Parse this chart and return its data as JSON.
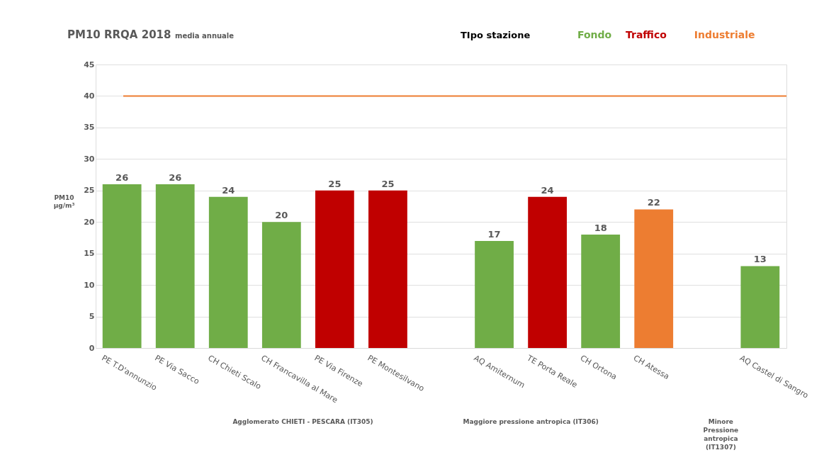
{
  "chart_data": {
    "type": "bar",
    "title": "PM10 RRQA  2018",
    "subtitle": "media annuale",
    "ylabel": "PM10 µg/m³",
    "legend_title": "TIpo stazione",
    "legend": "top right",
    "categories": [
      "PE T.D'annunzio",
      "PE Via Sacco",
      "CH Chieti Scalo",
      "CH Francavilla al Mare",
      "PE  Via Firenze",
      "PE Montesilvano",
      null,
      "AQ Amiternum",
      "TE Porta Reale",
      "CH Ortona",
      "CH Atessa",
      null,
      "AQ Castel di Sangro"
    ],
    "series": [
      {
        "name": "Fondo",
        "color": "#70ad47",
        "values": [
          26,
          26,
          24,
          20,
          null,
          null,
          null,
          17,
          null,
          18,
          null,
          null,
          13
        ]
      },
      {
        "name": "Traffico",
        "color": "#c00000",
        "values": [
          null,
          null,
          null,
          null,
          25,
          25,
          null,
          null,
          24,
          null,
          null,
          null,
          null
        ]
      },
      {
        "name": "Industriale",
        "color": "#ed7d31",
        "values": [
          null,
          null,
          null,
          null,
          null,
          null,
          null,
          null,
          null,
          null,
          22,
          null,
          null
        ]
      }
    ],
    "ylim": [
      0,
      45
    ],
    "yticks": [
      0,
      5,
      10,
      15,
      20,
      25,
      30,
      35,
      40,
      45
    ],
    "grid": "y",
    "data_labels": true,
    "ref_lines": [
      {
        "axis": "y",
        "value": 40,
        "color": "#ed7d31"
      }
    ],
    "annotations": [
      "Agglomerato CHIETI - PESCARA (IT305)",
      "Maggiore pressione antropica (IT306)",
      "Minore Pressione antropica (IT1307)"
    ]
  }
}
